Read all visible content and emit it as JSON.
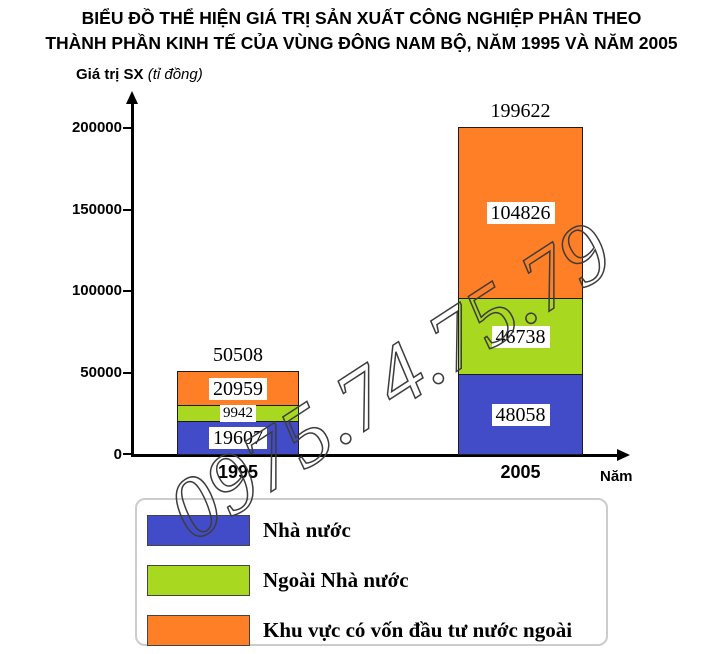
{
  "title": {
    "line1": "BIỂU ĐỒ THỂ HIỆN GIÁ TRỊ SẢN XUẤT CÔNG NGHIỆP PHÂN THEO",
    "line2": "THÀNH PHẦN KINH TẾ CỦA VÙNG ĐÔNG NAM BỘ, NĂM 1995 VÀ NĂM 2005"
  },
  "y_axis": {
    "title_bold": "Giá trị SX",
    "title_italic": "(tỉ đồng)",
    "tick_labels": [
      "200000",
      "150000",
      "100000",
      "50000",
      "0"
    ]
  },
  "x_axis": {
    "title": "Năm",
    "categories": [
      "1995",
      "2005"
    ]
  },
  "watermark": "0975.74.75.79",
  "chart_data": {
    "type": "bar",
    "stacked": true,
    "title": "BIỂU ĐỒ THỂ HIỆN GIÁ TRỊ SẢN XUẤT CÔNG NGHIỆP PHÂN THEO THÀNH PHẦN KINH TẾ CỦA VÙNG ĐÔNG NAM BỘ, NĂM 1995 VÀ NĂM 2005",
    "xlabel": "Năm",
    "ylabel": "Giá trị SX (tỉ đồng)",
    "categories": [
      "1995",
      "2005"
    ],
    "series": [
      {
        "name": "Nhà nước",
        "color": "#424cc8",
        "values": [
          19607,
          48058
        ]
      },
      {
        "name": "Ngoài Nhà nước",
        "color": "#a8d820",
        "values": [
          9942,
          46738
        ]
      },
      {
        "name": "Khu vực có vốn đầu tư nước ngoài",
        "color": "#ff7f27",
        "values": [
          20959,
          104826
        ]
      }
    ],
    "totals": [
      50508,
      199622
    ],
    "ylim": [
      0,
      200000
    ],
    "yticks": [
      0,
      50000,
      100000,
      150000,
      200000
    ],
    "grid": false,
    "legend_position": "bottom"
  },
  "legend": {
    "items": [
      {
        "label": "Nhà nước",
        "color": "#424cc8"
      },
      {
        "label": "Ngoài Nhà nước",
        "color": "#a8d820"
      },
      {
        "label": "Khu vực có vốn đầu tư nước ngoài",
        "color": "#ff7f27"
      }
    ]
  }
}
